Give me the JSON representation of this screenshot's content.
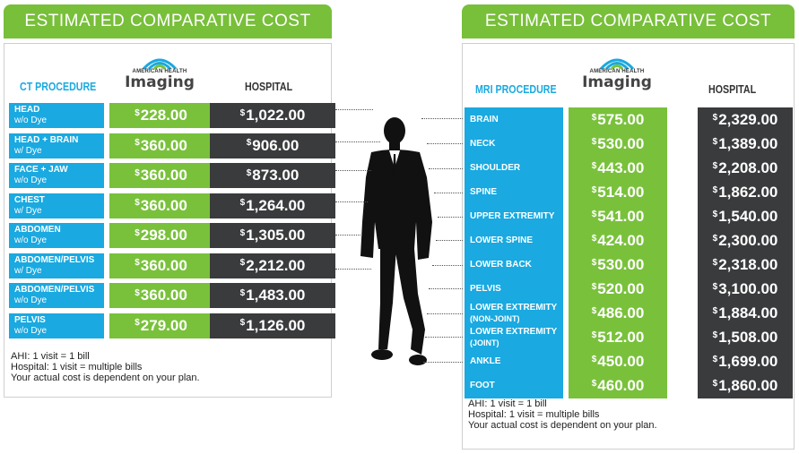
{
  "ct": {
    "title": "ESTIMATED COMPARATIVE COST",
    "procedure_header": "CT PROCEDURE",
    "hospital_header": "HOSPITAL",
    "logo_small": "AMERICAN HEALTH",
    "logo_big": "Imaging",
    "currency": "$",
    "rows": [
      {
        "name": "HEAD",
        "sub": "w/o Dye",
        "ahi": "228.00",
        "hospital": "1,022.00"
      },
      {
        "name": "HEAD + BRAIN",
        "sub": "w/ Dye",
        "ahi": "360.00",
        "hospital": "906.00"
      },
      {
        "name": "FACE + JAW",
        "sub": "w/o Dye",
        "ahi": "360.00",
        "hospital": "873.00"
      },
      {
        "name": "CHEST",
        "sub": "w/ Dye",
        "ahi": "360.00",
        "hospital": "1,264.00"
      },
      {
        "name": "ABDOMEN",
        "sub": "w/o Dye",
        "ahi": "298.00",
        "hospital": "1,305.00"
      },
      {
        "name": "ABDOMEN/PELVIS",
        "sub": "w/ Dye",
        "ahi": "360.00",
        "hospital": "2,212.00"
      },
      {
        "name": "ABDOMEN/PELVIS",
        "sub": "w/o Dye",
        "ahi": "360.00",
        "hospital": "1,483.00"
      },
      {
        "name": "PELVIS",
        "sub": "w/o Dye",
        "ahi": "279.00",
        "hospital": "1,126.00"
      }
    ],
    "notes": [
      "AHI: 1 visit = 1 bill",
      "Hospital: 1 visit = multiple bills",
      "Your actual cost is dependent on your plan."
    ]
  },
  "mri": {
    "title": "ESTIMATED COMPARATIVE COST",
    "procedure_header": "MRI PROCEDURE",
    "hospital_header": "HOSPITAL",
    "logo_small": "AMERICAN HEALTH",
    "logo_big": "Imaging",
    "currency": "$",
    "rows": [
      {
        "name": "BRAIN",
        "sub": "",
        "ahi": "575.00",
        "hospital": "2,329.00"
      },
      {
        "name": "NECK",
        "sub": "",
        "ahi": "530.00",
        "hospital": "1,389.00"
      },
      {
        "name": "SHOULDER",
        "sub": "",
        "ahi": "443.00",
        "hospital": "2,208.00"
      },
      {
        "name": "SPINE",
        "sub": "",
        "ahi": "514.00",
        "hospital": "1,862.00"
      },
      {
        "name": "UPPER EXTREMITY",
        "sub": "",
        "ahi": "541.00",
        "hospital": "1,540.00"
      },
      {
        "name": "LOWER SPINE",
        "sub": "",
        "ahi": "424.00",
        "hospital": "2,300.00"
      },
      {
        "name": "LOWER BACK",
        "sub": "",
        "ahi": "530.00",
        "hospital": "2,318.00"
      },
      {
        "name": "PELVIS",
        "sub": "",
        "ahi": "520.00",
        "hospital": "3,100.00"
      },
      {
        "name": "LOWER EXTREMITY",
        "sub": "(NON-JOINT)",
        "ahi": "486.00",
        "hospital": "1,884.00"
      },
      {
        "name": "LOWER EXTREMITY",
        "sub": "(JOINT)",
        "ahi": "512.00",
        "hospital": "1,508.00"
      },
      {
        "name": "ANKLE",
        "sub": "",
        "ahi": "450.00",
        "hospital": "1,699.00"
      },
      {
        "name": "FOOT",
        "sub": "",
        "ahi": "460.00",
        "hospital": "1,860.00"
      }
    ],
    "notes": [
      "AHI: 1 visit = 1 bill",
      "Hospital: 1 visit = multiple bills",
      "Your actual cost is dependent on your plan."
    ]
  },
  "colors": {
    "green": "#79c13b",
    "blue": "#1aa9e0",
    "dark": "#3a3b3d"
  },
  "icons": {
    "logo": "american-health-imaging-logo",
    "figure": "businessman-silhouette"
  }
}
